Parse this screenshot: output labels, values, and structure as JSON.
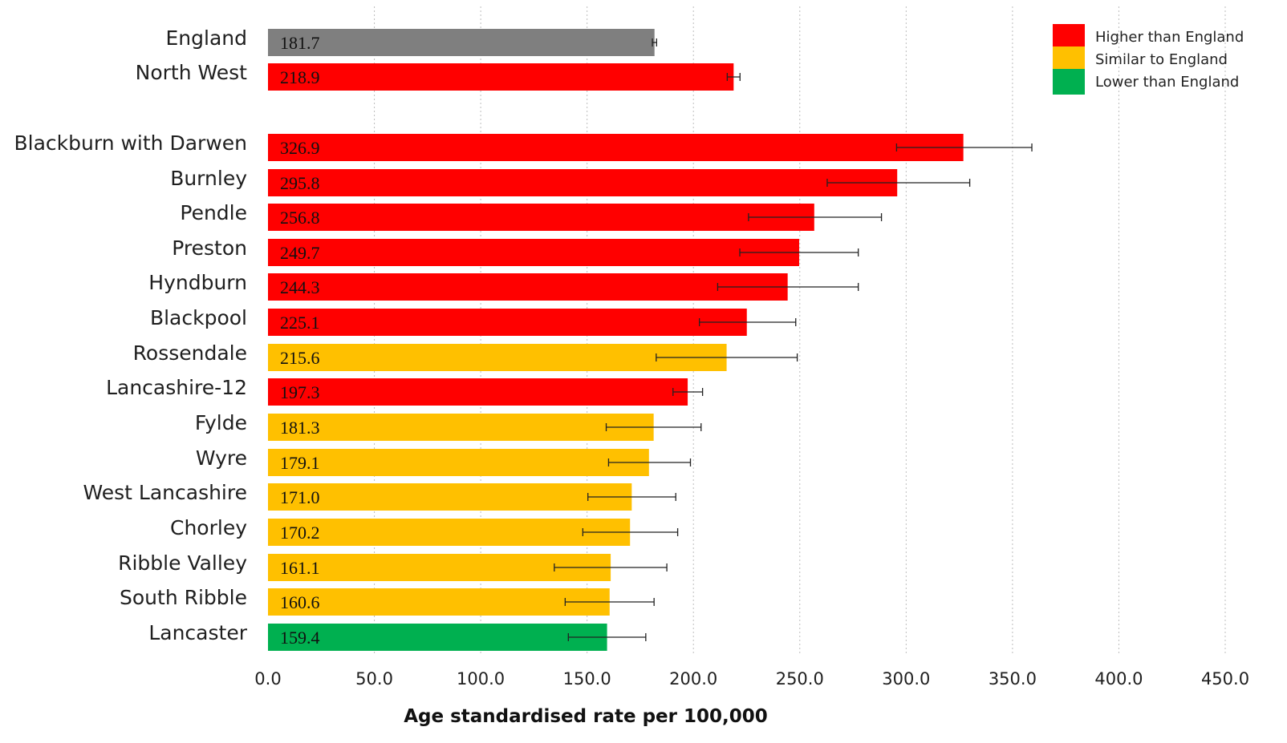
{
  "chart_data": {
    "type": "bar",
    "orientation": "horizontal",
    "xlabel": "Age standardised rate per 100,000",
    "xlim": [
      0,
      450
    ],
    "xticks": [
      "0.0",
      "50.0",
      "100.0",
      "150.0",
      "200.0",
      "250.0",
      "300.0",
      "350.0",
      "400.0",
      "450.0"
    ],
    "grid": true,
    "legend_position": "top-right",
    "legend": [
      {
        "label": "Higher than England",
        "color": "#ff0000"
      },
      {
        "label": "Similar to England",
        "color": "#ffc000"
      },
      {
        "label": "Lower than England",
        "color": "#00b050"
      }
    ],
    "bars": [
      {
        "category": "England",
        "value": 181.7,
        "label": "181.7",
        "ci": [
          180.7,
          182.7
        ],
        "color": "#7f7f7f"
      },
      {
        "category": "North West",
        "value": 218.9,
        "label": "218.9",
        "ci": [
          215.9,
          221.9
        ],
        "color": "#ff0000"
      },
      {
        "category": "Blackburn with Darwen",
        "value": 326.9,
        "label": "326.9",
        "ci": [
          295.5,
          359.1
        ],
        "color": "#ff0000"
      },
      {
        "category": "Burnley",
        "value": 295.8,
        "label": "295.8",
        "ci": [
          262.9,
          329.9
        ],
        "color": "#ff0000"
      },
      {
        "category": "Pendle",
        "value": 256.8,
        "label": "256.8",
        "ci": [
          225.9,
          288.4
        ],
        "color": "#ff0000"
      },
      {
        "category": "Preston",
        "value": 249.7,
        "label": "249.7",
        "ci": [
          221.8,
          277.5
        ],
        "color": "#ff0000"
      },
      {
        "category": "Hyndburn",
        "value": 244.3,
        "label": "244.3",
        "ci": [
          211.4,
          277.5
        ],
        "color": "#ff0000"
      },
      {
        "category": "Blackpool",
        "value": 225.1,
        "label": "225.1",
        "ci": [
          202.8,
          248.1
        ],
        "color": "#ff0000"
      },
      {
        "category": "Rossendale",
        "value": 215.6,
        "label": "215.6",
        "ci": [
          182.5,
          248.8
        ],
        "color": "#ffc000"
      },
      {
        "category": "Lancashire-12",
        "value": 197.3,
        "label": "197.3",
        "ci": [
          190.4,
          204.3
        ],
        "color": "#ff0000"
      },
      {
        "category": "Fylde",
        "value": 181.3,
        "label": "181.3",
        "ci": [
          159.0,
          203.6
        ],
        "color": "#ffc000"
      },
      {
        "category": "Wyre",
        "value": 179.1,
        "label": "179.1",
        "ci": [
          160.1,
          198.6
        ],
        "color": "#ffc000"
      },
      {
        "category": "West Lancashire",
        "value": 171.0,
        "label": "171.0",
        "ci": [
          150.4,
          191.7
        ],
        "color": "#ffc000"
      },
      {
        "category": "Chorley",
        "value": 170.2,
        "label": "170.2",
        "ci": [
          148.0,
          192.6
        ],
        "color": "#ffc000"
      },
      {
        "category": "Ribble Valley",
        "value": 161.1,
        "label": "161.1",
        "ci": [
          134.6,
          187.5
        ],
        "color": "#ffc000"
      },
      {
        "category": "South Ribble",
        "value": 160.6,
        "label": "160.6",
        "ci": [
          139.7,
          181.5
        ],
        "color": "#ffc000"
      },
      {
        "category": "Lancaster",
        "value": 159.4,
        "label": "159.4",
        "ci": [
          141.2,
          177.6
        ],
        "color": "#00b050"
      }
    ]
  }
}
